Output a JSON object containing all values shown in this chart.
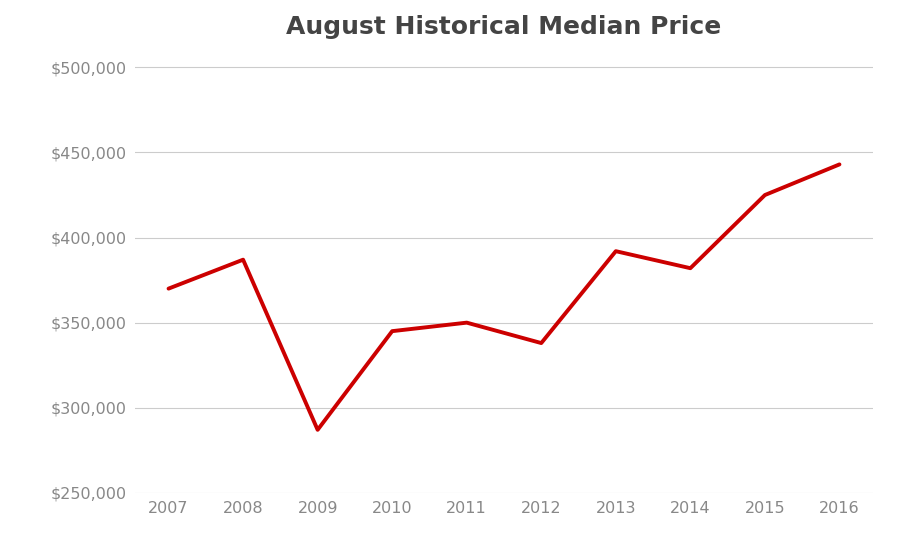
{
  "title": "August Historical Median Price",
  "years": [
    2007,
    2008,
    2009,
    2010,
    2011,
    2012,
    2013,
    2014,
    2015,
    2016
  ],
  "values": [
    370000,
    387000,
    287000,
    345000,
    350000,
    338000,
    392000,
    382000,
    425000,
    443000
  ],
  "line_color": "#cc0000",
  "line_width": 2.8,
  "background_color": "#ffffff",
  "grid_color": "#cccccc",
  "ylim": [
    250000,
    510000
  ],
  "yticks": [
    250000,
    300000,
    350000,
    400000,
    450000,
    500000
  ],
  "title_fontsize": 18,
  "tick_fontsize": 11.5,
  "tick_color": "#888888",
  "title_color": "#444444"
}
